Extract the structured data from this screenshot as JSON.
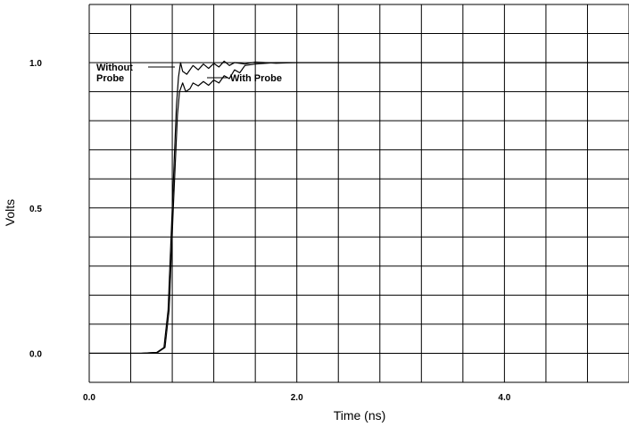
{
  "chart_data": {
    "type": "line",
    "title": "",
    "xlabel": "Time (ns)",
    "ylabel": "Volts",
    "xlim": [
      0.0,
      5.2
    ],
    "ylim": [
      -0.1,
      1.2
    ],
    "grid": true,
    "x_ticks": [
      {
        "value": 0.0,
        "label": "0.0"
      },
      {
        "value": 2.0,
        "label": "2.0"
      },
      {
        "value": 4.0,
        "label": "4.0"
      }
    ],
    "y_ticks": [
      {
        "value": 0.0,
        "label": "0.0"
      },
      {
        "value": 0.5,
        "label": "0.5"
      },
      {
        "value": 1.0,
        "label": "1.0"
      }
    ],
    "series": [
      {
        "name": "Without Probe",
        "points": [
          [
            0.0,
            0.0
          ],
          [
            0.5,
            0.0
          ],
          [
            0.65,
            0.003
          ],
          [
            0.72,
            0.02
          ],
          [
            0.76,
            0.15
          ],
          [
            0.8,
            0.5
          ],
          [
            0.84,
            0.85
          ],
          [
            0.86,
            0.95
          ],
          [
            0.88,
            1.0
          ],
          [
            0.9,
            0.97
          ],
          [
            0.94,
            0.96
          ],
          [
            1.0,
            0.99
          ],
          [
            1.05,
            0.975
          ],
          [
            1.1,
            0.995
          ],
          [
            1.15,
            0.98
          ],
          [
            1.2,
            0.997
          ],
          [
            1.25,
            0.985
          ],
          [
            1.3,
            1.005
          ],
          [
            1.35,
            0.99
          ],
          [
            1.4,
            1.0
          ],
          [
            1.5,
            0.995
          ],
          [
            1.6,
            1.002
          ],
          [
            1.8,
            0.998
          ],
          [
            2.0,
            1.0
          ],
          [
            3.0,
            1.0
          ],
          [
            5.2,
            1.0
          ]
        ]
      },
      {
        "name": "With Probe",
        "points": [
          [
            0.0,
            0.0
          ],
          [
            0.5,
            0.0
          ],
          [
            0.66,
            0.003
          ],
          [
            0.73,
            0.02
          ],
          [
            0.77,
            0.15
          ],
          [
            0.81,
            0.5
          ],
          [
            0.85,
            0.82
          ],
          [
            0.87,
            0.9
          ],
          [
            0.9,
            0.93
          ],
          [
            0.93,
            0.9
          ],
          [
            0.97,
            0.91
          ],
          [
            1.0,
            0.93
          ],
          [
            1.05,
            0.92
          ],
          [
            1.1,
            0.935
          ],
          [
            1.15,
            0.922
          ],
          [
            1.2,
            0.94
          ],
          [
            1.25,
            0.93
          ],
          [
            1.3,
            0.955
          ],
          [
            1.35,
            0.945
          ],
          [
            1.4,
            0.975
          ],
          [
            1.45,
            0.965
          ],
          [
            1.5,
            0.99
          ],
          [
            1.6,
            0.995
          ],
          [
            1.8,
            1.0
          ],
          [
            2.2,
            1.0
          ],
          [
            3.0,
            1.0
          ],
          [
            5.2,
            1.0
          ]
        ]
      }
    ],
    "annotations": [
      {
        "text": "Without",
        "series": "Without Probe"
      },
      {
        "text": "Probe",
        "series": "Without Probe"
      },
      {
        "text": "With Probe",
        "series": "With Probe"
      }
    ],
    "colors": {
      "line": "#000000",
      "grid": "#000000",
      "background": "#ffffff"
    }
  }
}
